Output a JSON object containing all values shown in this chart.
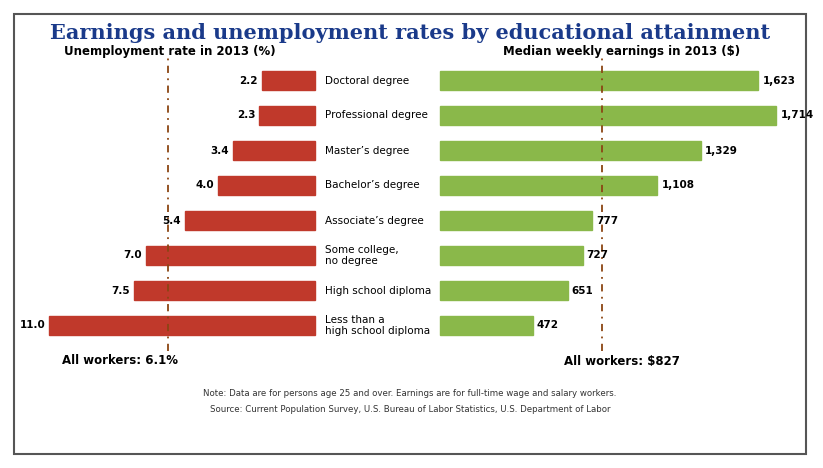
{
  "title": "Earnings and unemployment rates by educational attainment",
  "left_subtitle": "Unemployment rate in 2013 (%)",
  "right_subtitle": "Median weekly earnings in 2013 ($)",
  "left_footer": "All workers: 6.1%",
  "right_footer": "All workers: $827",
  "note": "Note: Data are for persons age 25 and over. Earnings are for full-time wage and salary workers.",
  "source": "Source: Current Population Survey, U.S. Bureau of Labor Statistics, U.S. Department of Labor",
  "categories": [
    "Doctoral degree",
    "Professional degree",
    "Master’s degree",
    "Bachelor’s degree",
    "Associate’s degree",
    "Some college,\nno degree",
    "High school diploma",
    "Less than a\nhigh school diploma"
  ],
  "unemployment": [
    2.2,
    2.3,
    3.4,
    4.0,
    5.4,
    7.0,
    7.5,
    11.0
  ],
  "earnings": [
    1623,
    1714,
    1329,
    1108,
    777,
    727,
    651,
    472
  ],
  "unemployment_max": 12.0,
  "earnings_max": 1850,
  "unemployment_ref": 6.1,
  "earnings_ref": 827,
  "bar_color_left": "#c0392b",
  "bar_color_right": "#8ab84a",
  "bg_color": "#ffffff",
  "title_color": "#1a3a8a",
  "subtitle_color": "#000000",
  "dashed_color": "#8B4513",
  "border_color": "#555555"
}
